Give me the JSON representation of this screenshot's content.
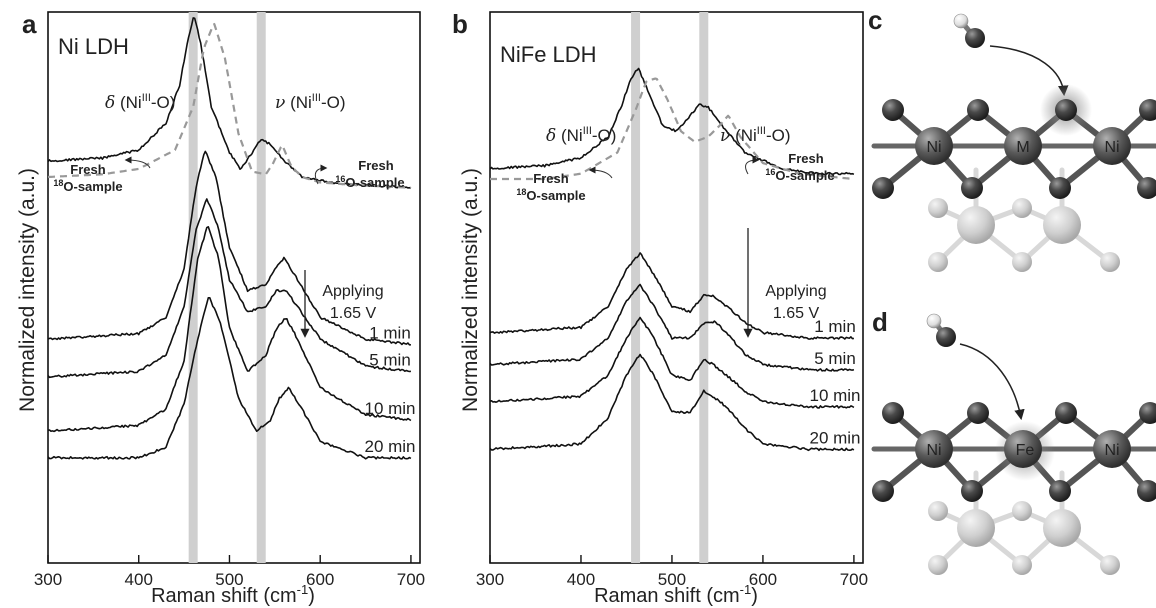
{
  "chart_data": [
    {
      "panel_letter": "a",
      "type": "line",
      "title": "Ni LDH",
      "xlabel": "Raman shift (cm",
      "xlabel_sup": "-1",
      "xlabel_end": ")",
      "ylabel": "Normalized intensity (a.u.)",
      "xlim": [
        300,
        710
      ],
      "xticks": [
        "300",
        "400",
        "500",
        "600",
        "700"
      ],
      "bands": [
        460,
        535
      ],
      "delta_peak": {
        "sym": "δ",
        "pre": " (Ni",
        "sup": "III",
        "post": "-O)"
      },
      "nu_peak": {
        "sym": "ν",
        "pre": " (Ni",
        "sup": "III",
        "post": "-O)"
      },
      "fresh18": {
        "line1": "Fresh",
        "sup": "18",
        "line2": "O-sample"
      },
      "fresh16": {
        "line1": "Fresh",
        "sup": "16",
        "line2": "O-sample"
      },
      "applying": [
        "Applying",
        "1.65 V"
      ],
      "series": [
        {
          "x": [
            300,
            360,
            400,
            430,
            445,
            455,
            461,
            468,
            480,
            500,
            512,
            525,
            535,
            545,
            560,
            580,
            610,
            650,
            700
          ],
          "y": [
            0.73,
            0.735,
            0.75,
            0.8,
            0.87,
            0.96,
            1.0,
            0.95,
            0.83,
            0.745,
            0.715,
            0.745,
            0.77,
            0.76,
            0.73,
            0.7,
            0.69,
            0.685,
            0.68
          ]
        },
        {
          "dashed": true,
          "x": [
            300,
            360,
            400,
            440,
            460,
            472,
            483,
            495,
            510,
            525,
            540,
            548,
            558,
            568,
            580,
            600,
            640,
            700
          ],
          "y": [
            0.7,
            0.705,
            0.715,
            0.75,
            0.83,
            0.94,
            0.985,
            0.92,
            0.78,
            0.71,
            0.705,
            0.725,
            0.76,
            0.72,
            0.7,
            0.69,
            0.685,
            0.68
          ]
        },
        {
          "label": "1 min",
          "x": [
            300,
            400,
            430,
            450,
            463,
            473,
            485,
            500,
            520,
            540,
            550,
            560,
            575,
            600,
            650,
            700
          ],
          "y": [
            0.4,
            0.41,
            0.44,
            0.53,
            0.68,
            0.75,
            0.7,
            0.57,
            0.49,
            0.5,
            0.53,
            0.55,
            0.51,
            0.44,
            0.4,
            0.39
          ]
        },
        {
          "label": "5 min",
          "x": [
            300,
            400,
            430,
            450,
            463,
            475,
            487,
            500,
            520,
            540,
            552,
            562,
            575,
            600,
            650,
            700
          ],
          "y": [
            0.33,
            0.34,
            0.37,
            0.46,
            0.6,
            0.66,
            0.61,
            0.51,
            0.45,
            0.46,
            0.49,
            0.49,
            0.46,
            0.4,
            0.35,
            0.34
          ]
        },
        {
          "label": "10 min",
          "x": [
            300,
            400,
            430,
            450,
            465,
            476,
            488,
            500,
            520,
            540,
            552,
            562,
            575,
            600,
            650,
            700
          ],
          "y": [
            0.23,
            0.24,
            0.27,
            0.36,
            0.55,
            0.61,
            0.55,
            0.42,
            0.34,
            0.37,
            0.42,
            0.44,
            0.4,
            0.31,
            0.26,
            0.25
          ]
        },
        {
          "label": "20 min",
          "x": [
            300,
            400,
            430,
            450,
            465,
            477,
            490,
            510,
            530,
            545,
            555,
            565,
            580,
            600,
            650,
            700
          ],
          "y": [
            0.18,
            0.18,
            0.2,
            0.28,
            0.4,
            0.48,
            0.43,
            0.29,
            0.23,
            0.25,
            0.29,
            0.31,
            0.27,
            0.21,
            0.18,
            0.18
          ]
        }
      ]
    },
    {
      "panel_letter": "b",
      "type": "line",
      "title": "NiFe LDH",
      "xlabel": "Raman shift (cm",
      "xlabel_sup": "-1",
      "xlabel_end": ")",
      "ylabel": "Normalized intensity (a.u.)",
      "xlim": [
        300,
        710
      ],
      "xticks": [
        "300",
        "400",
        "500",
        "600",
        "700"
      ],
      "bands": [
        460,
        535
      ],
      "delta_peak": {
        "sym": "δ",
        "pre": " (Ni",
        "sup": "III",
        "post": "-O)"
      },
      "nu_peak": {
        "sym": "ν",
        "pre": " (Ni",
        "sup": "III",
        "post": "-O)"
      },
      "fresh18": {
        "line1": "Fresh",
        "sup": "18",
        "line2": "O-sample"
      },
      "fresh16": {
        "line1": "Fresh",
        "sup": "16",
        "line2": "O-sample"
      },
      "applying": [
        "Applying",
        "1.65 V"
      ],
      "series": [
        {
          "x": [
            300,
            360,
            400,
            430,
            445,
            455,
            463,
            475,
            490,
            505,
            515,
            530,
            540,
            555,
            580,
            620,
            660,
            700
          ],
          "y": [
            0.72,
            0.725,
            0.74,
            0.78,
            0.84,
            0.89,
            0.91,
            0.86,
            0.8,
            0.79,
            0.81,
            0.84,
            0.835,
            0.8,
            0.75,
            0.72,
            0.71,
            0.71
          ]
        },
        {
          "dashed": true,
          "x": [
            300,
            360,
            400,
            440,
            460,
            472,
            483,
            495,
            510,
            525,
            540,
            552,
            562,
            575,
            600,
            640,
            700
          ],
          "y": [
            0.7,
            0.7,
            0.71,
            0.75,
            0.83,
            0.885,
            0.89,
            0.85,
            0.79,
            0.77,
            0.78,
            0.8,
            0.82,
            0.78,
            0.73,
            0.71,
            0.7
          ]
        },
        {
          "label": "1 min",
          "x": [
            300,
            400,
            430,
            450,
            465,
            480,
            500,
            520,
            535,
            545,
            560,
            580,
            600,
            650,
            700
          ],
          "y": [
            0.41,
            0.42,
            0.46,
            0.53,
            0.56,
            0.52,
            0.46,
            0.45,
            0.48,
            0.48,
            0.46,
            0.43,
            0.41,
            0.4,
            0.4
          ]
        },
        {
          "label": "5 min",
          "x": [
            300,
            400,
            430,
            450,
            465,
            480,
            500,
            520,
            537,
            548,
            560,
            580,
            600,
            650,
            700
          ],
          "y": [
            0.35,
            0.36,
            0.4,
            0.47,
            0.5,
            0.46,
            0.4,
            0.4,
            0.43,
            0.43,
            0.41,
            0.37,
            0.35,
            0.34,
            0.34
          ]
        },
        {
          "label": "10 min",
          "x": [
            300,
            400,
            430,
            450,
            465,
            480,
            500,
            520,
            535,
            545,
            560,
            580,
            600,
            650,
            700
          ],
          "y": [
            0.28,
            0.29,
            0.33,
            0.4,
            0.44,
            0.4,
            0.33,
            0.32,
            0.36,
            0.35,
            0.33,
            0.3,
            0.28,
            0.27,
            0.27
          ]
        },
        {
          "label": "20 min",
          "x": [
            300,
            400,
            430,
            450,
            465,
            480,
            500,
            520,
            535,
            545,
            560,
            580,
            600,
            650,
            700
          ],
          "y": [
            0.19,
            0.2,
            0.25,
            0.33,
            0.37,
            0.33,
            0.26,
            0.26,
            0.3,
            0.29,
            0.27,
            0.23,
            0.2,
            0.19,
            0.19
          ]
        }
      ]
    }
  ],
  "schematic_c": {
    "panel_letter": "c",
    "labels": [
      "Ni",
      "M",
      "Ni"
    ]
  },
  "schematic_d": {
    "panel_letter": "d",
    "labels": [
      "Ni",
      "Fe",
      "Ni"
    ]
  }
}
